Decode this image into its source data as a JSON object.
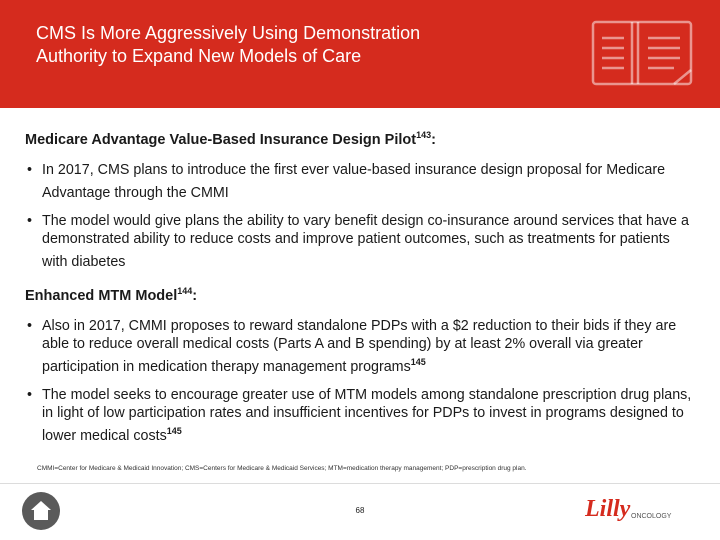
{
  "header": {
    "title_line1": "CMS Is More Aggressively Using Demonstration",
    "title_line2": "Authority to Expand New Models of Care",
    "icon": "book-icon",
    "bg_color": "#d52b1e"
  },
  "sections": [
    {
      "title": "Medicare Advantage Value-Based Insurance Design Pilot",
      "title_ref": "143",
      "title_suffix": ":",
      "bullets": [
        {
          "text": "In 2017, CMS plans to introduce the first ever value-based insurance design proposal for Medicare Advantage through the CMMI",
          "ref": ""
        },
        {
          "text": "The model would give plans the ability to vary benefit design co-insurance around services that have a demonstrated ability to reduce costs and improve patient outcomes, such as treatments for patients with diabetes",
          "ref": ""
        }
      ]
    },
    {
      "title": "Enhanced MTM Model",
      "title_ref": "144",
      "title_suffix": ":",
      "bullets": [
        {
          "text": "Also in 2017, CMMI proposes to reward standalone PDPs with a $2 reduction to their bids if they are able to reduce overall medical costs (Parts A and B spending) by at least 2% overall via greater participation in medication therapy management programs",
          "ref": "145"
        },
        {
          "text": "The model seeks to encourage greater use of MTM models among standalone prescription drug plans, in light of low participation rates and insufficient incentives for PDPs to invest in programs designed to lower medical costs",
          "ref": "145"
        }
      ]
    }
  ],
  "bullet_char": "•",
  "footnote": "CMMI=Center for Medicare & Medicaid Innovation; CMS=Centers for Medicare & Medicaid Services; MTM=medication therapy management; PDP=prescription drug plan.",
  "footer": {
    "page_number": "68",
    "home_icon": "home-icon",
    "logo_script": "Lilly",
    "logo_text": "ONCOLOGY"
  }
}
